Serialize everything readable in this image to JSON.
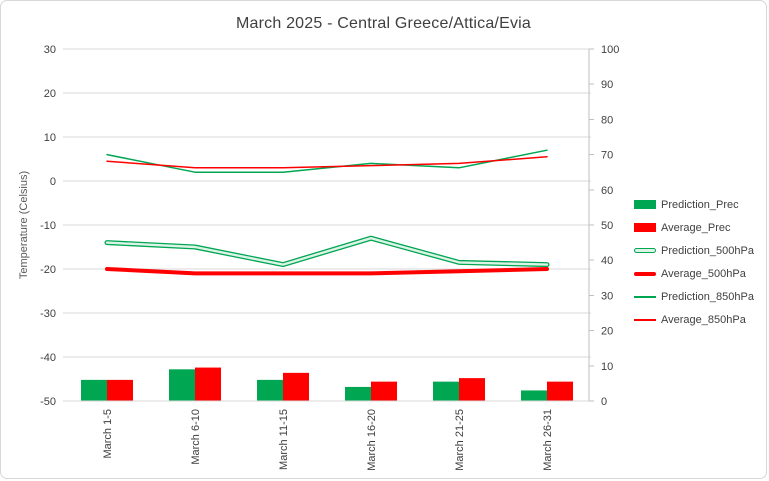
{
  "chart_data": {
    "type": "bar+line combo",
    "title": "March 2025 - Central Greece/Attica/Evia",
    "categories": [
      "March 1-5",
      "March 6-10",
      "March 11-15",
      "March 16-20",
      "March 21-25",
      "March 26-31"
    ],
    "bar_series": [
      {
        "name": "Prediction_Prec",
        "axis": "right",
        "color": "#00A651",
        "values": [
          6,
          9,
          6,
          4,
          5.5,
          3
        ]
      },
      {
        "name": "Average_Prec",
        "axis": "right",
        "color": "#FF0000",
        "values": [
          6,
          9.5,
          8,
          5.5,
          6.5,
          5.5
        ]
      }
    ],
    "line_series": [
      {
        "name": "Prediction_500hPa",
        "axis": "left",
        "color": "#00A651",
        "style": "double",
        "values": [
          -14,
          -15,
          -19,
          -13,
          -18.5,
          -19
        ]
      },
      {
        "name": "Average_500hPa",
        "axis": "left",
        "color": "#FF0000",
        "style": "thick",
        "values": [
          -20,
          -21,
          -21,
          -21,
          -20.5,
          -20
        ]
      },
      {
        "name": "Prediction_850hPa",
        "axis": "left",
        "color": "#00A651",
        "style": "thin",
        "values": [
          6,
          2,
          2,
          4,
          3,
          7
        ]
      },
      {
        "name": "Average_850hPa",
        "axis": "left",
        "color": "#FF0000",
        "style": "thin",
        "values": [
          4.5,
          3,
          3,
          3.5,
          4,
          5.5
        ]
      }
    ],
    "left_axis": {
      "label": "Temperature (Celsius)",
      "min": -50,
      "max": 30,
      "ticks": [
        "30",
        "20",
        "10",
        "0",
        "-10",
        "-20",
        "-30",
        "-40",
        "-50"
      ]
    },
    "right_axis": {
      "min": 0,
      "max": 100,
      "ticks": [
        "100",
        "90",
        "80",
        "70",
        "60",
        "50",
        "40",
        "30",
        "20",
        "10",
        "0"
      ]
    },
    "legend_position": "right",
    "grid": true,
    "legend_items": [
      {
        "label": "Prediction_Prec",
        "swatch": "bar",
        "color": "#00A651"
      },
      {
        "label": "Average_Prec",
        "swatch": "bar",
        "color": "#FF0000"
      },
      {
        "label": "Prediction_500hPa",
        "swatch": "double",
        "color": "#00A651"
      },
      {
        "label": "Average_500hPa",
        "swatch": "thick",
        "color": "#FF0000"
      },
      {
        "label": "Prediction_850hPa",
        "swatch": "thin",
        "color": "#00A651"
      },
      {
        "label": "Average_850hPa",
        "swatch": "thin",
        "color": "#FF0000"
      }
    ],
    "colors": {
      "grid": "#D9D9D9",
      "axis_line": "#BFBFBF",
      "tick_text": "#404040",
      "axis_title_text": "#595959",
      "title_text": "#404040",
      "double_line_inner": "#DCF3E7"
    }
  }
}
